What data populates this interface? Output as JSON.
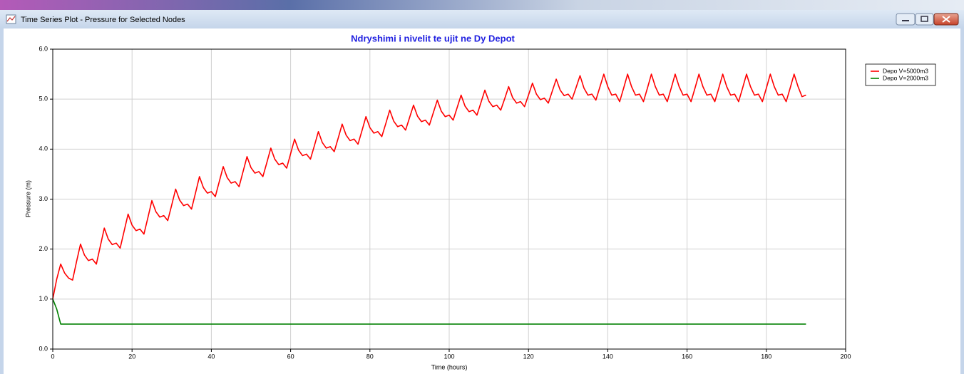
{
  "window": {
    "title": "Time Series Plot - Pressure for Selected Nodes"
  },
  "chart_data": {
    "type": "line",
    "title": "Ndryshimi i nivelit te ujit ne Dy Depot",
    "x_label": "Time (hours)",
    "y_label": "Pressure (m)",
    "xlim": [
      0,
      200
    ],
    "xticks": [
      0,
      20,
      40,
      60,
      80,
      100,
      120,
      140,
      160,
      180,
      200
    ],
    "ylim": [
      0,
      6
    ],
    "yticks": [
      {
        "value": 0,
        "label": "0.0"
      },
      {
        "value": 1,
        "label": "1.0"
      },
      {
        "value": 2,
        "label": "2.0"
      },
      {
        "value": 3,
        "label": "3.0"
      },
      {
        "value": 4,
        "label": "4.0"
      },
      {
        "value": 5,
        "label": "5.0"
      },
      {
        "value": 6,
        "label": "6.0"
      }
    ],
    "grid": true,
    "legend": "right",
    "series": [
      {
        "name": "Depo V=5000m3",
        "color": "#ff0000",
        "x": [
          0,
          1,
          2,
          3,
          4,
          5,
          6,
          7,
          8,
          9,
          10,
          11,
          12,
          13,
          14,
          15,
          16,
          17,
          18,
          19,
          20,
          21,
          22,
          23,
          24,
          25,
          26,
          27,
          28,
          29,
          30,
          31,
          32,
          33,
          34,
          35,
          36,
          37,
          38,
          39,
          40,
          41,
          42,
          43,
          44,
          45,
          46,
          47,
          48,
          49,
          50,
          51,
          52,
          53,
          54,
          55,
          56,
          57,
          58,
          59,
          60,
          61,
          62,
          63,
          64,
          65,
          66,
          67,
          68,
          69,
          70,
          71,
          72,
          73,
          74,
          75,
          76,
          77,
          78,
          79,
          80,
          81,
          82,
          83,
          84,
          85,
          86,
          87,
          88,
          89,
          90,
          91,
          92,
          93,
          94,
          95,
          96,
          97,
          98,
          99,
          100,
          101,
          102,
          103,
          104,
          105,
          106,
          107,
          108,
          109,
          110,
          111,
          112,
          113,
          114,
          115,
          116,
          117,
          118,
          119,
          120,
          121,
          122,
          123,
          124,
          125,
          126,
          127,
          128,
          129,
          130,
          131,
          132,
          133,
          134,
          135,
          136,
          137,
          138,
          139,
          140,
          141,
          142,
          143,
          144,
          145,
          146,
          147,
          148,
          149,
          150,
          151,
          152,
          153,
          154,
          155,
          156,
          157,
          158,
          159,
          160,
          161,
          162,
          163,
          164,
          165,
          166,
          167,
          168,
          169,
          170,
          171,
          172,
          173,
          174,
          175,
          176,
          177,
          178,
          179,
          180,
          181,
          182,
          183,
          184,
          185,
          186,
          187,
          188,
          189,
          190
        ],
        "values": [
          1.0,
          1.4,
          1.7,
          1.52,
          1.42,
          1.38,
          1.75,
          2.1,
          1.88,
          1.77,
          1.8,
          1.7,
          2.06,
          2.42,
          2.2,
          2.09,
          2.12,
          2.02,
          2.36,
          2.7,
          2.48,
          2.37,
          2.4,
          2.3,
          2.63,
          2.97,
          2.75,
          2.64,
          2.67,
          2.57,
          2.88,
          3.2,
          2.98,
          2.87,
          2.9,
          2.8,
          3.12,
          3.45,
          3.23,
          3.12,
          3.15,
          3.05,
          3.35,
          3.65,
          3.43,
          3.32,
          3.35,
          3.25,
          3.55,
          3.85,
          3.63,
          3.52,
          3.55,
          3.45,
          3.73,
          4.02,
          3.8,
          3.69,
          3.72,
          3.62,
          3.91,
          4.2,
          3.98,
          3.87,
          3.9,
          3.8,
          4.07,
          4.35,
          4.13,
          4.02,
          4.05,
          3.95,
          4.22,
          4.5,
          4.28,
          4.17,
          4.2,
          4.1,
          4.37,
          4.65,
          4.43,
          4.32,
          4.35,
          4.25,
          4.51,
          4.78,
          4.56,
          4.45,
          4.48,
          4.38,
          4.63,
          4.88,
          4.66,
          4.55,
          4.58,
          4.48,
          4.73,
          4.98,
          4.76,
          4.65,
          4.68,
          4.58,
          4.83,
          5.08,
          4.86,
          4.75,
          4.78,
          4.68,
          4.93,
          5.18,
          4.96,
          4.85,
          4.88,
          4.78,
          5.01,
          5.25,
          5.03,
          4.92,
          4.95,
          4.85,
          5.08,
          5.32,
          5.1,
          4.99,
          5.02,
          4.92,
          5.16,
          5.4,
          5.18,
          5.07,
          5.1,
          5.0,
          5.23,
          5.47,
          5.22,
          5.08,
          5.1,
          4.98,
          5.24,
          5.5,
          5.25,
          5.08,
          5.1,
          4.95,
          5.22,
          5.5,
          5.25,
          5.08,
          5.1,
          4.95,
          5.22,
          5.5,
          5.25,
          5.08,
          5.1,
          4.95,
          5.22,
          5.5,
          5.25,
          5.08,
          5.1,
          4.95,
          5.22,
          5.5,
          5.25,
          5.08,
          5.1,
          4.95,
          5.22,
          5.5,
          5.25,
          5.08,
          5.1,
          4.95,
          5.22,
          5.5,
          5.25,
          5.08,
          5.1,
          4.95,
          5.22,
          5.5,
          5.25,
          5.08,
          5.1,
          4.95,
          5.22,
          5.5,
          5.25,
          5.05,
          5.08
        ]
      },
      {
        "name": "Depo V=2000m3",
        "color": "#008000",
        "x": [
          0,
          1,
          2,
          190
        ],
        "values": [
          1.0,
          0.8,
          0.5,
          0.5
        ]
      }
    ]
  }
}
